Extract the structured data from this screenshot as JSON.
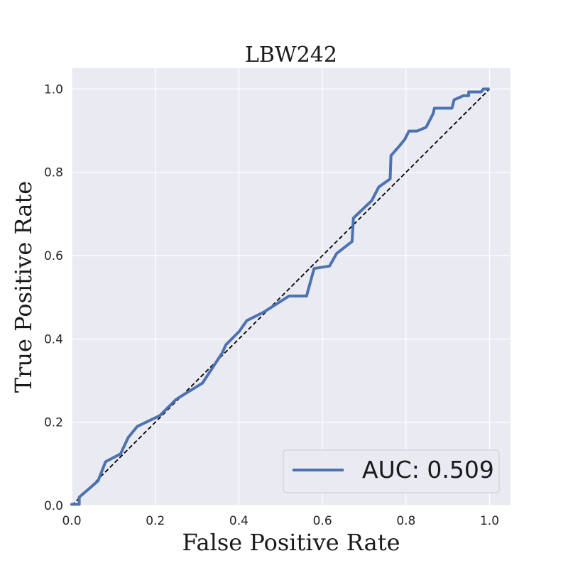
{
  "chart_data": {
    "type": "line",
    "title": "LBW242",
    "xlabel": "False Positive Rate",
    "ylabel": "True Positive Rate",
    "xlim": [
      0.0,
      1.05
    ],
    "ylim": [
      0.0,
      1.05
    ],
    "xticks": [
      "0.0",
      "0.2",
      "0.4",
      "0.6",
      "0.8",
      "1.0"
    ],
    "yticks": [
      "0.0",
      "0.2",
      "0.4",
      "0.6",
      "0.8",
      "1.0"
    ],
    "grid": true,
    "legend_position": "lower-right",
    "colors": {
      "background": "#eaeaf2",
      "grid": "#ffffff",
      "roc": "#4c72b0",
      "diagonal": "#000000"
    },
    "series": [
      {
        "name": "AUC: 0.509",
        "style": "solid",
        "x": [
          0.0,
          0.0,
          0.018,
          0.018,
          0.063,
          0.081,
          0.117,
          0.135,
          0.157,
          0.211,
          0.25,
          0.313,
          0.36,
          0.369,
          0.401,
          0.419,
          0.459,
          0.52,
          0.562,
          0.58,
          0.617,
          0.634,
          0.671,
          0.674,
          0.718,
          0.735,
          0.762,
          0.764,
          0.784,
          0.797,
          0.807,
          0.826,
          0.848,
          0.865,
          0.868,
          0.91,
          0.915,
          0.938,
          0.95,
          0.95,
          0.98,
          0.985,
          1.0
        ],
        "y": [
          0.0,
          0.003,
          0.003,
          0.02,
          0.059,
          0.105,
          0.124,
          0.163,
          0.19,
          0.216,
          0.255,
          0.294,
          0.366,
          0.386,
          0.418,
          0.444,
          0.464,
          0.503,
          0.503,
          0.569,
          0.575,
          0.605,
          0.634,
          0.69,
          0.732,
          0.765,
          0.784,
          0.84,
          0.863,
          0.879,
          0.899,
          0.899,
          0.908,
          0.941,
          0.954,
          0.954,
          0.974,
          0.984,
          0.984,
          0.993,
          0.993,
          1.0,
          1.0
        ]
      },
      {
        "name": "",
        "style": "dashed",
        "x": [
          0.0,
          1.0
        ],
        "y": [
          0.0,
          1.0
        ]
      }
    ]
  }
}
